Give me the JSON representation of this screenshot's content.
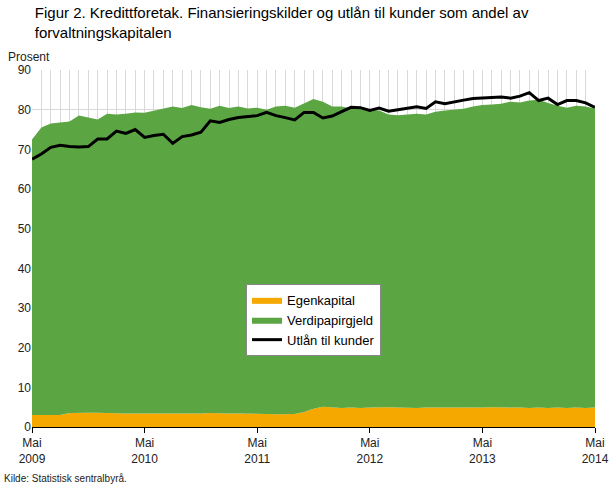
{
  "chart_data": {
    "type": "area",
    "title": "Figur 2. Kredittforetak. Finansieringskilder og utlån til kunder som andel av\nforvaltningskapitalen",
    "ylabel": "Prosent",
    "source": "Kilde: Statistisk sentralbyrå.",
    "categories": [
      "Mai 2009",
      null,
      null,
      null,
      null,
      null,
      null,
      null,
      null,
      null,
      null,
      null,
      "Mai 2010",
      null,
      null,
      null,
      null,
      null,
      null,
      null,
      null,
      null,
      null,
      null,
      "Mai 2011",
      null,
      null,
      null,
      null,
      null,
      null,
      null,
      null,
      null,
      null,
      null,
      "Mai 2012",
      null,
      null,
      null,
      null,
      null,
      null,
      null,
      null,
      null,
      null,
      null,
      "Mai 2013",
      null,
      null,
      null,
      null,
      null,
      null,
      null,
      null,
      null,
      null,
      null,
      "Mai 2014"
    ],
    "series": [
      {
        "name": "Utlån til kunder",
        "type": "line",
        "color": "#000000",
        "values": [
          67.5,
          68.8,
          70.5,
          71,
          70.7,
          70.6,
          70.7,
          72.6,
          72.6,
          74.6,
          74.0,
          75.0,
          73.0,
          73.5,
          73.8,
          71.5,
          73.2,
          73.6,
          74.3,
          77.2,
          76.8,
          77.5,
          78.0,
          78.3,
          78.5,
          79.3,
          78.5,
          78.0,
          77.4,
          79.3,
          79.3,
          77.9,
          78.4,
          79.5,
          80.6,
          80.5,
          79.8,
          80.4,
          79.6,
          80.0,
          80.4,
          80.7,
          80.3,
          82.0,
          81.5,
          82.0,
          82.4,
          82.8,
          82.9,
          83.0,
          83.2,
          82.9,
          83.4,
          84.3,
          82.3,
          82.9,
          81.3,
          82.3,
          82.3,
          81.7,
          80.6
        ]
      },
      {
        "name": "Verdipapirgjeld",
        "type": "area",
        "color": "#5ba642",
        "values": [
          69.5,
          72.5,
          73.5,
          73.7,
          73.5,
          74.9,
          74.4,
          73.9,
          75.5,
          75.4,
          75.6,
          75.9,
          75.8,
          76.3,
          77.0,
          77.5,
          77.0,
          77.8,
          77.2,
          76.7,
          77.6,
          77.0,
          77.4,
          76.9,
          77.1,
          76.7,
          77.6,
          77.8,
          77.2,
          77.7,
          78.1,
          76.9,
          75.8,
          76.0,
          75.4,
          75.5,
          75.1,
          74.8,
          73.8,
          73.7,
          74.0,
          74.2,
          73.9,
          74.6,
          75.0,
          75.2,
          75.4,
          76.0,
          76.3,
          76.3,
          76.5,
          77.0,
          76.9,
          77.5,
          77.6,
          76.9,
          76.1,
          75.7,
          76.1,
          76.0,
          75.4
        ]
      },
      {
        "name": "Egenkapital",
        "type": "area",
        "color": "#f5a800",
        "values": [
          3.0,
          3.0,
          3.0,
          3.0,
          3.5,
          3.6,
          3.6,
          3.6,
          3.5,
          3.4,
          3.4,
          3.4,
          3.4,
          3.4,
          3.3,
          3.3,
          3.4,
          3.4,
          3.4,
          3.5,
          3.4,
          3.4,
          3.4,
          3.4,
          3.4,
          3.3,
          3.2,
          3.2,
          3.3,
          3.8,
          4.6,
          5.1,
          5.0,
          4.8,
          4.9,
          4.8,
          4.9,
          5.0,
          5.0,
          4.9,
          4.8,
          4.8,
          4.9,
          4.9,
          4.8,
          4.8,
          4.8,
          4.8,
          4.9,
          5.0,
          5.0,
          5.0,
          4.9,
          4.8,
          4.9,
          4.8,
          4.9,
          4.8,
          4.9,
          4.8,
          4.9
        ]
      }
    ],
    "stacked": true,
    "ylim": [
      0,
      90
    ],
    "yticks": [
      0,
      10,
      20,
      30,
      40,
      50,
      60,
      70,
      80,
      90
    ],
    "grid": true,
    "legend": "center"
  }
}
